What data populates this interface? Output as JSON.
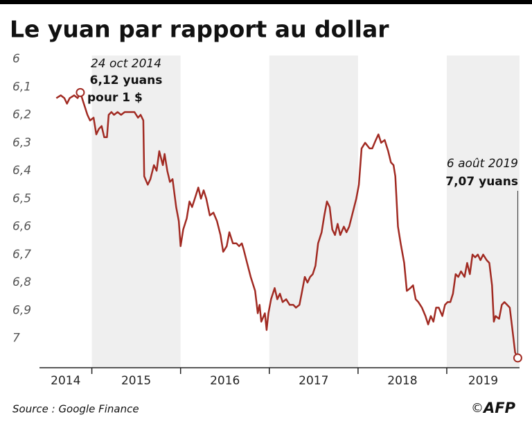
{
  "chart_data": {
    "type": "line",
    "title": "Le yuan par rapport au dollar",
    "source": "Source : Google Finance",
    "credit": "©",
    "logo": "AFP",
    "color": "#a12a22",
    "inverted": true,
    "grid": false,
    "ylim": [
      6,
      7.1
    ],
    "yticks": [
      6,
      {
        "value": 6.1,
        "label": "6,1"
      },
      {
        "value": 6.2,
        "label": "6,2"
      },
      {
        "value": 6.3,
        "label": "6,3"
      },
      {
        "value": 6.4,
        "label": "6,4"
      },
      {
        "value": 6.5,
        "label": "6,5"
      },
      {
        "value": 6.6,
        "label": "6,6"
      },
      {
        "value": 6.7,
        "label": "6,7"
      },
      {
        "value": 6.8,
        "label": "6,8"
      },
      {
        "value": 6.9,
        "label": "6,9"
      },
      7
    ],
    "xlim": [
      2014.41,
      2019.82
    ],
    "xticks": [
      2015,
      2016,
      2017,
      2018,
      2019
    ],
    "x_labels": [
      "2014",
      "2015",
      "2016",
      "2017",
      "2018",
      "2019"
    ],
    "x": [
      2014.6,
      2014.65,
      2014.69,
      2014.72,
      2014.75,
      2014.8,
      2014.84,
      2014.87,
      2014.91,
      2014.95,
      2014.98,
      2015.02,
      2015.05,
      2015.08,
      2015.11,
      2015.14,
      2015.17,
      2015.19,
      2015.22,
      2015.25,
      2015.29,
      2015.33,
      2015.37,
      2015.41,
      2015.45,
      2015.48,
      2015.52,
      2015.55,
      2015.58,
      2015.59,
      2015.63,
      2015.66,
      2015.7,
      2015.73,
      2015.76,
      2015.8,
      2015.82,
      2015.85,
      2015.88,
      2015.91,
      2015.95,
      2015.98,
      2016.0,
      2016.03,
      2016.07,
      2016.1,
      2016.13,
      2016.16,
      2016.2,
      2016.23,
      2016.26,
      2016.29,
      2016.33,
      2016.37,
      2016.41,
      2016.45,
      2016.48,
      2016.52,
      2016.55,
      2016.59,
      2016.63,
      2016.66,
      2016.69,
      2016.71,
      2016.75,
      2016.79,
      2016.84,
      2016.87,
      2016.89,
      2016.91,
      2016.95,
      2016.97,
      2016.99,
      2017.02,
      2017.06,
      2017.09,
      2017.12,
      2017.15,
      2017.19,
      2017.23,
      2017.27,
      2017.3,
      2017.34,
      2017.37,
      2017.4,
      2017.43,
      2017.46,
      2017.49,
      2017.52,
      2017.55,
      2017.59,
      2017.62,
      2017.65,
      2017.68,
      2017.71,
      2017.74,
      2017.77,
      2017.8,
      2017.84,
      2017.87,
      2017.9,
      2017.94,
      2017.98,
      2018.01,
      2018.04,
      2018.08,
      2018.13,
      2018.16,
      2018.2,
      2018.23,
      2018.26,
      2018.3,
      2018.34,
      2018.37,
      2018.4,
      2018.42,
      2018.45,
      2018.48,
      2018.52,
      2018.55,
      2018.59,
      2018.62,
      2018.65,
      2018.68,
      2018.72,
      2018.76,
      2018.79,
      2018.82,
      2018.85,
      2018.88,
      2018.91,
      2018.95,
      2018.98,
      2019.01,
      2019.04,
      2019.07,
      2019.1,
      2019.13,
      2019.16,
      2019.2,
      2019.23,
      2019.26,
      2019.29,
      2019.32,
      2019.35,
      2019.38,
      2019.41,
      2019.45,
      2019.48,
      2019.51,
      2019.53,
      2019.55,
      2019.59,
      2019.62,
      2019.65,
      2019.68,
      2019.71,
      2019.74,
      2019.77,
      2019.8
    ],
    "values": [
      6.14,
      6.13,
      6.14,
      6.16,
      6.14,
      6.13,
      6.14,
      6.12,
      6.16,
      6.2,
      6.22,
      6.21,
      6.27,
      6.25,
      6.24,
      6.28,
      6.28,
      6.2,
      6.19,
      6.2,
      6.19,
      6.2,
      6.19,
      6.19,
      6.19,
      6.19,
      6.21,
      6.2,
      6.22,
      6.42,
      6.45,
      6.43,
      6.38,
      6.4,
      6.33,
      6.38,
      6.34,
      6.4,
      6.44,
      6.43,
      6.53,
      6.58,
      6.67,
      6.61,
      6.57,
      6.51,
      6.53,
      6.5,
      6.46,
      6.5,
      6.47,
      6.5,
      6.56,
      6.55,
      6.58,
      6.63,
      6.69,
      6.67,
      6.62,
      6.66,
      6.66,
      6.67,
      6.66,
      6.68,
      6.73,
      6.78,
      6.83,
      6.91,
      6.88,
      6.94,
      6.91,
      6.97,
      6.91,
      6.86,
      6.82,
      6.86,
      6.84,
      6.87,
      6.86,
      6.88,
      6.88,
      6.89,
      6.88,
      6.83,
      6.78,
      6.8,
      6.78,
      6.77,
      6.74,
      6.66,
      6.62,
      6.56,
      6.51,
      6.53,
      6.61,
      6.63,
      6.59,
      6.63,
      6.6,
      6.62,
      6.6,
      6.55,
      6.5,
      6.45,
      6.32,
      6.3,
      6.32,
      6.32,
      6.29,
      6.27,
      6.3,
      6.29,
      6.33,
      6.37,
      6.38,
      6.42,
      6.6,
      6.66,
      6.73,
      6.83,
      6.82,
      6.81,
      6.86,
      6.87,
      6.89,
      6.92,
      6.95,
      6.92,
      6.94,
      6.89,
      6.89,
      6.92,
      6.88,
      6.87,
      6.87,
      6.84,
      6.77,
      6.78,
      6.76,
      6.78,
      6.73,
      6.77,
      6.7,
      6.71,
      6.7,
      6.72,
      6.7,
      6.72,
      6.73,
      6.81,
      6.94,
      6.92,
      6.93,
      6.88,
      6.87,
      6.88,
      6.89,
      6.97,
      7.05,
      7.07
    ],
    "annotations": [
      {
        "date": "24 oct 2014",
        "value_label": "6,12 yuans",
        "note": "pour 1 $",
        "x": 2014.87,
        "y": 6.12
      },
      {
        "date": "6 août 2019",
        "value_label": "7,07 yuans",
        "x": 2019.8,
        "y": 7.07
      }
    ]
  }
}
